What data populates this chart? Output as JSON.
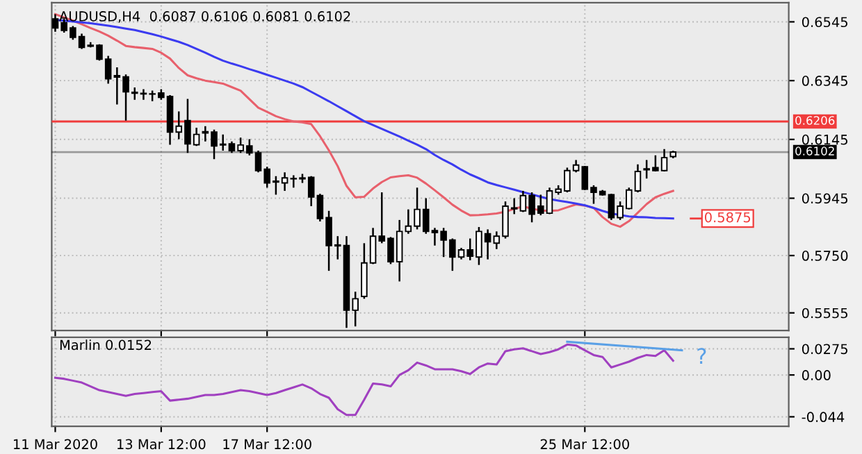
{
  "chart_data": [
    {
      "type": "candlestick",
      "title": "AUDUSD,H4  0.6087 0.6106 0.6081 0.6102",
      "categories": [
        null,
        null,
        null,
        null,
        null,
        null,
        null,
        null,
        null,
        null,
        null,
        null,
        null,
        null,
        null,
        null,
        null,
        null,
        null,
        null,
        null,
        null,
        null,
        null,
        null,
        null,
        null,
        null,
        null,
        null,
        null,
        null,
        null,
        null,
        null,
        null,
        null,
        null,
        null,
        null,
        null,
        null,
        null,
        null,
        null,
        null,
        null,
        null,
        null,
        null,
        null,
        null,
        null,
        null,
        null,
        null,
        null,
        null,
        null,
        null,
        null,
        null,
        null,
        null,
        null,
        null,
        null,
        null,
        null,
        null,
        null,
        null,
        null,
        null,
        null,
        null,
        null,
        null,
        null,
        null,
        null,
        null,
        null,
        null
      ],
      "ohlc": [
        [
          0.6555,
          0.6571,
          0.6511,
          0.6524
        ],
        [
          0.6542,
          0.6555,
          0.6508,
          0.6516
        ],
        [
          0.6524,
          0.6531,
          0.6484,
          0.6492
        ],
        [
          0.6495,
          0.6505,
          0.6453,
          0.6458
        ],
        [
          0.6465,
          0.6476,
          0.6458,
          0.6462
        ],
        [
          0.6465,
          0.6469,
          0.6413,
          0.6418
        ],
        [
          0.6418,
          0.6429,
          0.6335,
          0.6351
        ],
        [
          0.6362,
          0.639,
          0.6264,
          0.6357
        ],
        [
          0.6358,
          0.6366,
          0.6209,
          0.6307
        ],
        [
          0.6305,
          0.6322,
          0.628,
          0.6302
        ],
        [
          0.6302,
          0.6316,
          0.628,
          0.63
        ],
        [
          0.63,
          0.6311,
          0.6275,
          0.6299
        ],
        [
          0.6303,
          0.6316,
          0.628,
          0.6288
        ],
        [
          0.6291,
          0.6296,
          0.6127,
          0.617
        ],
        [
          0.617,
          0.624,
          0.6146,
          0.619
        ],
        [
          0.6209,
          0.6283,
          0.6099,
          0.613
        ],
        [
          0.6127,
          0.6185,
          0.6123,
          0.6162
        ],
        [
          0.6171,
          0.619,
          0.6138,
          0.6167
        ],
        [
          0.617,
          0.6178,
          0.6078,
          0.6123
        ],
        [
          0.6129,
          0.6162,
          0.6107,
          0.6126
        ],
        [
          0.613,
          0.6138,
          0.6099,
          0.6107
        ],
        [
          0.6107,
          0.6151,
          0.6099,
          0.6126
        ],
        [
          0.6123,
          0.6146,
          0.6091,
          0.6099
        ],
        [
          0.6099,
          0.6107,
          0.6033,
          0.6039
        ],
        [
          0.6044,
          0.6052,
          0.5981,
          0.5997
        ],
        [
          0.6003,
          0.602,
          0.5957,
          0.6
        ],
        [
          0.5997,
          0.6033,
          0.597,
          0.6014
        ],
        [
          0.6012,
          0.6023,
          0.5981,
          0.6011
        ],
        [
          0.6011,
          0.6028,
          0.5997,
          0.6014
        ],
        [
          0.6016,
          0.602,
          0.5918,
          0.5949
        ],
        [
          0.5954,
          0.596,
          0.5866,
          0.5876
        ],
        [
          0.5879,
          0.5902,
          0.5698,
          0.5784
        ],
        [
          0.5786,
          0.5816,
          0.5737,
          0.5783
        ],
        [
          0.5784,
          0.5816,
          0.5504,
          0.5564
        ],
        [
          0.5564,
          0.5627,
          0.5509,
          0.5603
        ],
        [
          0.5611,
          0.5792,
          0.5603,
          0.5725
        ],
        [
          0.5725,
          0.5844,
          0.5721,
          0.5816
        ],
        [
          0.5816,
          0.5965,
          0.5792,
          0.58
        ],
        [
          0.5808,
          0.5813,
          0.5721,
          0.5729
        ],
        [
          0.5729,
          0.5871,
          0.5662,
          0.5832
        ],
        [
          0.5832,
          0.5907,
          0.5824,
          0.585
        ],
        [
          0.585,
          0.5981,
          0.5839,
          0.5907
        ],
        [
          0.5907,
          0.5945,
          0.5824,
          0.5832
        ],
        [
          0.5835,
          0.5844,
          0.5784,
          0.5828
        ],
        [
          0.5832,
          0.5844,
          0.5745,
          0.5803
        ],
        [
          0.5803,
          0.5808,
          0.5698,
          0.5745
        ],
        [
          0.5745,
          0.5776,
          0.5737,
          0.5769
        ],
        [
          0.5769,
          0.5808,
          0.5734,
          0.5748
        ],
        [
          0.5745,
          0.5847,
          0.5718,
          0.5832
        ],
        [
          0.5824,
          0.5839,
          0.5737,
          0.5797
        ],
        [
          0.5792,
          0.5832,
          0.5772,
          0.5816
        ],
        [
          0.5816,
          0.5934,
          0.5808,
          0.5918
        ],
        [
          0.5909,
          0.5945,
          0.5891,
          0.5912
        ],
        [
          0.5902,
          0.597,
          0.5898,
          0.5954
        ],
        [
          0.5954,
          0.5965,
          0.5863,
          0.5891
        ],
        [
          0.5918,
          0.5957,
          0.5887,
          0.5894
        ],
        [
          0.5894,
          0.5981,
          0.5891,
          0.597
        ],
        [
          0.5965,
          0.5989,
          0.5957,
          0.5976
        ],
        [
          0.597,
          0.6049,
          0.5965,
          0.6039
        ],
        [
          0.6039,
          0.6075,
          0.6033,
          0.6058
        ],
        [
          0.6052,
          0.6055,
          0.5973,
          0.5976
        ],
        [
          0.5981,
          0.5989,
          0.5926,
          0.5965
        ],
        [
          0.5968,
          0.5973,
          0.5954,
          0.5957
        ],
        [
          0.5957,
          0.596,
          0.5871,
          0.5879
        ],
        [
          0.5879,
          0.5934,
          0.5871,
          0.5918
        ],
        [
          0.591,
          0.5981,
          0.5907,
          0.5973
        ],
        [
          0.597,
          0.606,
          0.5965,
          0.6036
        ],
        [
          0.6042,
          0.6075,
          0.6012,
          0.6045
        ],
        [
          0.6049,
          0.6091,
          0.6036,
          0.6039
        ],
        [
          0.6039,
          0.6112,
          0.6036,
          0.6083
        ],
        [
          0.6087,
          0.6106,
          0.6081,
          0.6102
        ],
        null,
        null,
        null,
        null,
        null,
        null,
        null,
        null,
        null,
        null,
        null,
        null,
        null
      ],
      "color": "#000000",
      "colors": [
        "#000000",
        "#000000",
        "#000000",
        "#000000",
        "#000000",
        "#000000",
        "#000000",
        "#000000",
        "#000000",
        "#000000",
        "#000000",
        "#000000",
        "#000000",
        "#000000",
        "#ffffff",
        "#000000",
        "#ffffff",
        "#000000",
        "#000000",
        "#000000",
        "#000000",
        "#ffffff",
        "#000000",
        "#000000",
        "#000000",
        "#000000",
        "#ffffff",
        "#000000",
        "#ffffff",
        "#000000",
        "#000000",
        "#000000",
        "#000000",
        "#000000",
        "#ffffff",
        "#ffffff",
        "#ffffff",
        "#000000",
        "#000000",
        "#ffffff",
        "#ffffff",
        "#ffffff",
        "#000000",
        "#000000",
        "#000000",
        "#000000",
        "#ffffff",
        "#000000",
        "#ffffff",
        "#000000",
        "#ffffff",
        "#ffffff",
        "#ffffff",
        "#ffffff",
        "#000000",
        "#000000",
        "#ffffff",
        "#ffffff",
        "#ffffff",
        "#ffffff",
        "#000000",
        "#000000",
        "#000000",
        "#000000",
        "#ffffff",
        "#ffffff",
        "#ffffff",
        "#ffffff",
        "#000000",
        "#ffffff",
        "#ffffff",
        null,
        null,
        null,
        null,
        null,
        null,
        null,
        null,
        null,
        null,
        null,
        null,
        null
      ],
      "series": [
        {
          "type": "line",
          "color": "#e8606c",
          "values": [
            0.6571,
            0.656,
            0.6549,
            0.6537,
            0.6524,
            0.6512,
            0.6498,
            0.6481,
            0.6463,
            0.6459,
            0.6456,
            0.6453,
            0.644,
            0.642,
            0.6388,
            0.6363,
            0.6353,
            0.6345,
            0.634,
            0.6335,
            0.6323,
            0.6311,
            0.6282,
            0.6253,
            0.6239,
            0.6224,
            0.6214,
            0.6206,
            0.6203,
            0.6197,
            0.6156,
            0.6108,
            0.6054,
            0.5987,
            0.5948,
            0.595,
            0.5978,
            0.6,
            0.6016,
            0.602,
            0.6023,
            0.6015,
            0.5995,
            0.5972,
            0.5948,
            0.5923,
            0.5903,
            0.5887,
            0.5888,
            0.589,
            0.5893,
            0.5899,
            0.5909,
            0.5917,
            0.591,
            0.5903,
            0.5902,
            0.5904,
            0.5914,
            0.5924,
            0.592,
            0.5912,
            0.5881,
            0.5858,
            0.5848,
            0.5867,
            0.5896,
            0.5925,
            0.5948,
            0.596,
            0.597,
            null,
            null,
            null,
            null,
            null,
            null,
            null,
            null,
            null,
            null,
            null,
            null,
            null
          ]
        },
        {
          "type": "line",
          "color": "#3b3bf0",
          "values": [
            0.6552,
            0.6549,
            0.6546,
            0.6543,
            0.654,
            0.6536,
            0.6532,
            0.6527,
            0.6522,
            0.6517,
            0.651,
            0.6503,
            0.6495,
            0.6486,
            0.6477,
            0.6466,
            0.6453,
            0.644,
            0.6426,
            0.6413,
            0.6403,
            0.6394,
            0.6384,
            0.6375,
            0.6365,
            0.6355,
            0.6345,
            0.6335,
            0.6323,
            0.6307,
            0.6291,
            0.6275,
            0.6258,
            0.6241,
            0.6224,
            0.6207,
            0.6194,
            0.6181,
            0.6168,
            0.6155,
            0.6141,
            0.6127,
            0.6112,
            0.6092,
            0.6075,
            0.606,
            0.6042,
            0.6026,
            0.6013,
            0.5999,
            0.599,
            0.5982,
            0.5974,
            0.5966,
            0.5958,
            0.595,
            0.5942,
            0.5937,
            0.5932,
            0.5927,
            0.5921,
            0.5912,
            0.5902,
            0.5893,
            0.5888,
            0.5883,
            0.5881,
            0.588,
            0.5878,
            0.5877,
            0.5876,
            null,
            null,
            null,
            null,
            null,
            null,
            null,
            null,
            null,
            null,
            null,
            null,
            null
          ]
        }
      ],
      "ylim": [
        0.5495,
        0.661
      ],
      "yticks": [
        0.6545,
        0.6345,
        0.6145,
        0.5945,
        {
          "value": 0.575,
          "label": "0.5750"
        },
        0.5555
      ],
      "tick_labels": "y",
      "grid": true,
      "ref_lines": [
        {
          "axis": "y",
          "value": 0.6206,
          "label": "0.6206",
          "color": "#f03c3c"
        },
        {
          "axis": "y",
          "value": 0.6102,
          "label": "0.6102",
          "color": "#000000"
        }
      ],
      "annotations": [
        "0.5875"
      ]
    },
    {
      "type": "line",
      "title": "Marlin 0.0152",
      "categories": [
        "11 Mar 2020",
        null,
        null,
        null,
        null,
        null,
        null,
        null,
        null,
        null,
        null,
        null,
        "13 Mar 12:00",
        null,
        null,
        null,
        null,
        null,
        null,
        null,
        null,
        null,
        null,
        null,
        "17 Mar 12:00",
        null,
        null,
        null,
        null,
        null,
        null,
        null,
        null,
        null,
        null,
        null,
        null,
        null,
        null,
        null,
        null,
        null,
        null,
        null,
        null,
        null,
        null,
        null,
        null,
        null,
        null,
        null,
        null,
        null,
        null,
        null,
        null,
        null,
        null,
        null,
        "25 Mar 12:00",
        null,
        null,
        null,
        null,
        null,
        null,
        null,
        null,
        null,
        null,
        null,
        null,
        null,
        null,
        null,
        null,
        null,
        null,
        null,
        null,
        null,
        null,
        null
      ],
      "series": [
        {
          "color": "#a040c0",
          "values": [
            -0.003,
            -0.004,
            -0.006,
            -0.008,
            -0.012,
            -0.016,
            -0.018,
            -0.02,
            -0.022,
            -0.02,
            -0.019,
            -0.018,
            -0.017,
            -0.027,
            -0.026,
            -0.025,
            -0.023,
            -0.021,
            -0.021,
            -0.02,
            -0.018,
            -0.016,
            -0.017,
            -0.019,
            -0.021,
            -0.019,
            -0.016,
            -0.013,
            -0.01,
            -0.014,
            -0.02,
            -0.024,
            -0.036,
            -0.042,
            -0.042,
            -0.026,
            -0.009,
            -0.01,
            -0.012,
            0.0,
            0.005,
            0.013,
            0.01,
            0.006,
            0.006,
            0.006,
            0.004,
            0.001,
            0.008,
            0.012,
            0.011,
            0.025,
            0.027,
            0.028,
            0.025,
            0.022,
            0.024,
            0.027,
            0.032,
            0.031,
            0.026,
            0.021,
            0.019,
            0.008,
            0.011,
            0.014,
            0.018,
            0.021,
            0.02,
            0.026,
            0.015,
            null,
            null,
            null,
            null,
            null,
            null,
            null,
            null,
            null,
            null,
            null,
            null,
            null
          ]
        },
        {
          "color": "#5aa0e6",
          "values": [
            null,
            null,
            null,
            null,
            null,
            null,
            null,
            null,
            null,
            null,
            null,
            null,
            null,
            null,
            null,
            null,
            null,
            null,
            null,
            null,
            null,
            null,
            null,
            null,
            null,
            null,
            null,
            null,
            null,
            null,
            null,
            null,
            null,
            null,
            null,
            null,
            null,
            null,
            null,
            null,
            null,
            null,
            null,
            null,
            null,
            null,
            null,
            null,
            null,
            null,
            null,
            null,
            null,
            null,
            null,
            null,
            null,
            null,
            0.035,
            null,
            null,
            null,
            null,
            null,
            null,
            null,
            null,
            null,
            null,
            null,
            null,
            0.026,
            null,
            null,
            null,
            null,
            null,
            null,
            null,
            null,
            null,
            null,
            null,
            null
          ]
        }
      ],
      "ylim": [
        -0.054,
        0.0396
      ],
      "yticks": [
        0.0275,
        {
          "value": 0,
          "label": "0.00"
        },
        -0.044
      ],
      "grid": true,
      "annotations": [
        "?"
      ]
    }
  ]
}
